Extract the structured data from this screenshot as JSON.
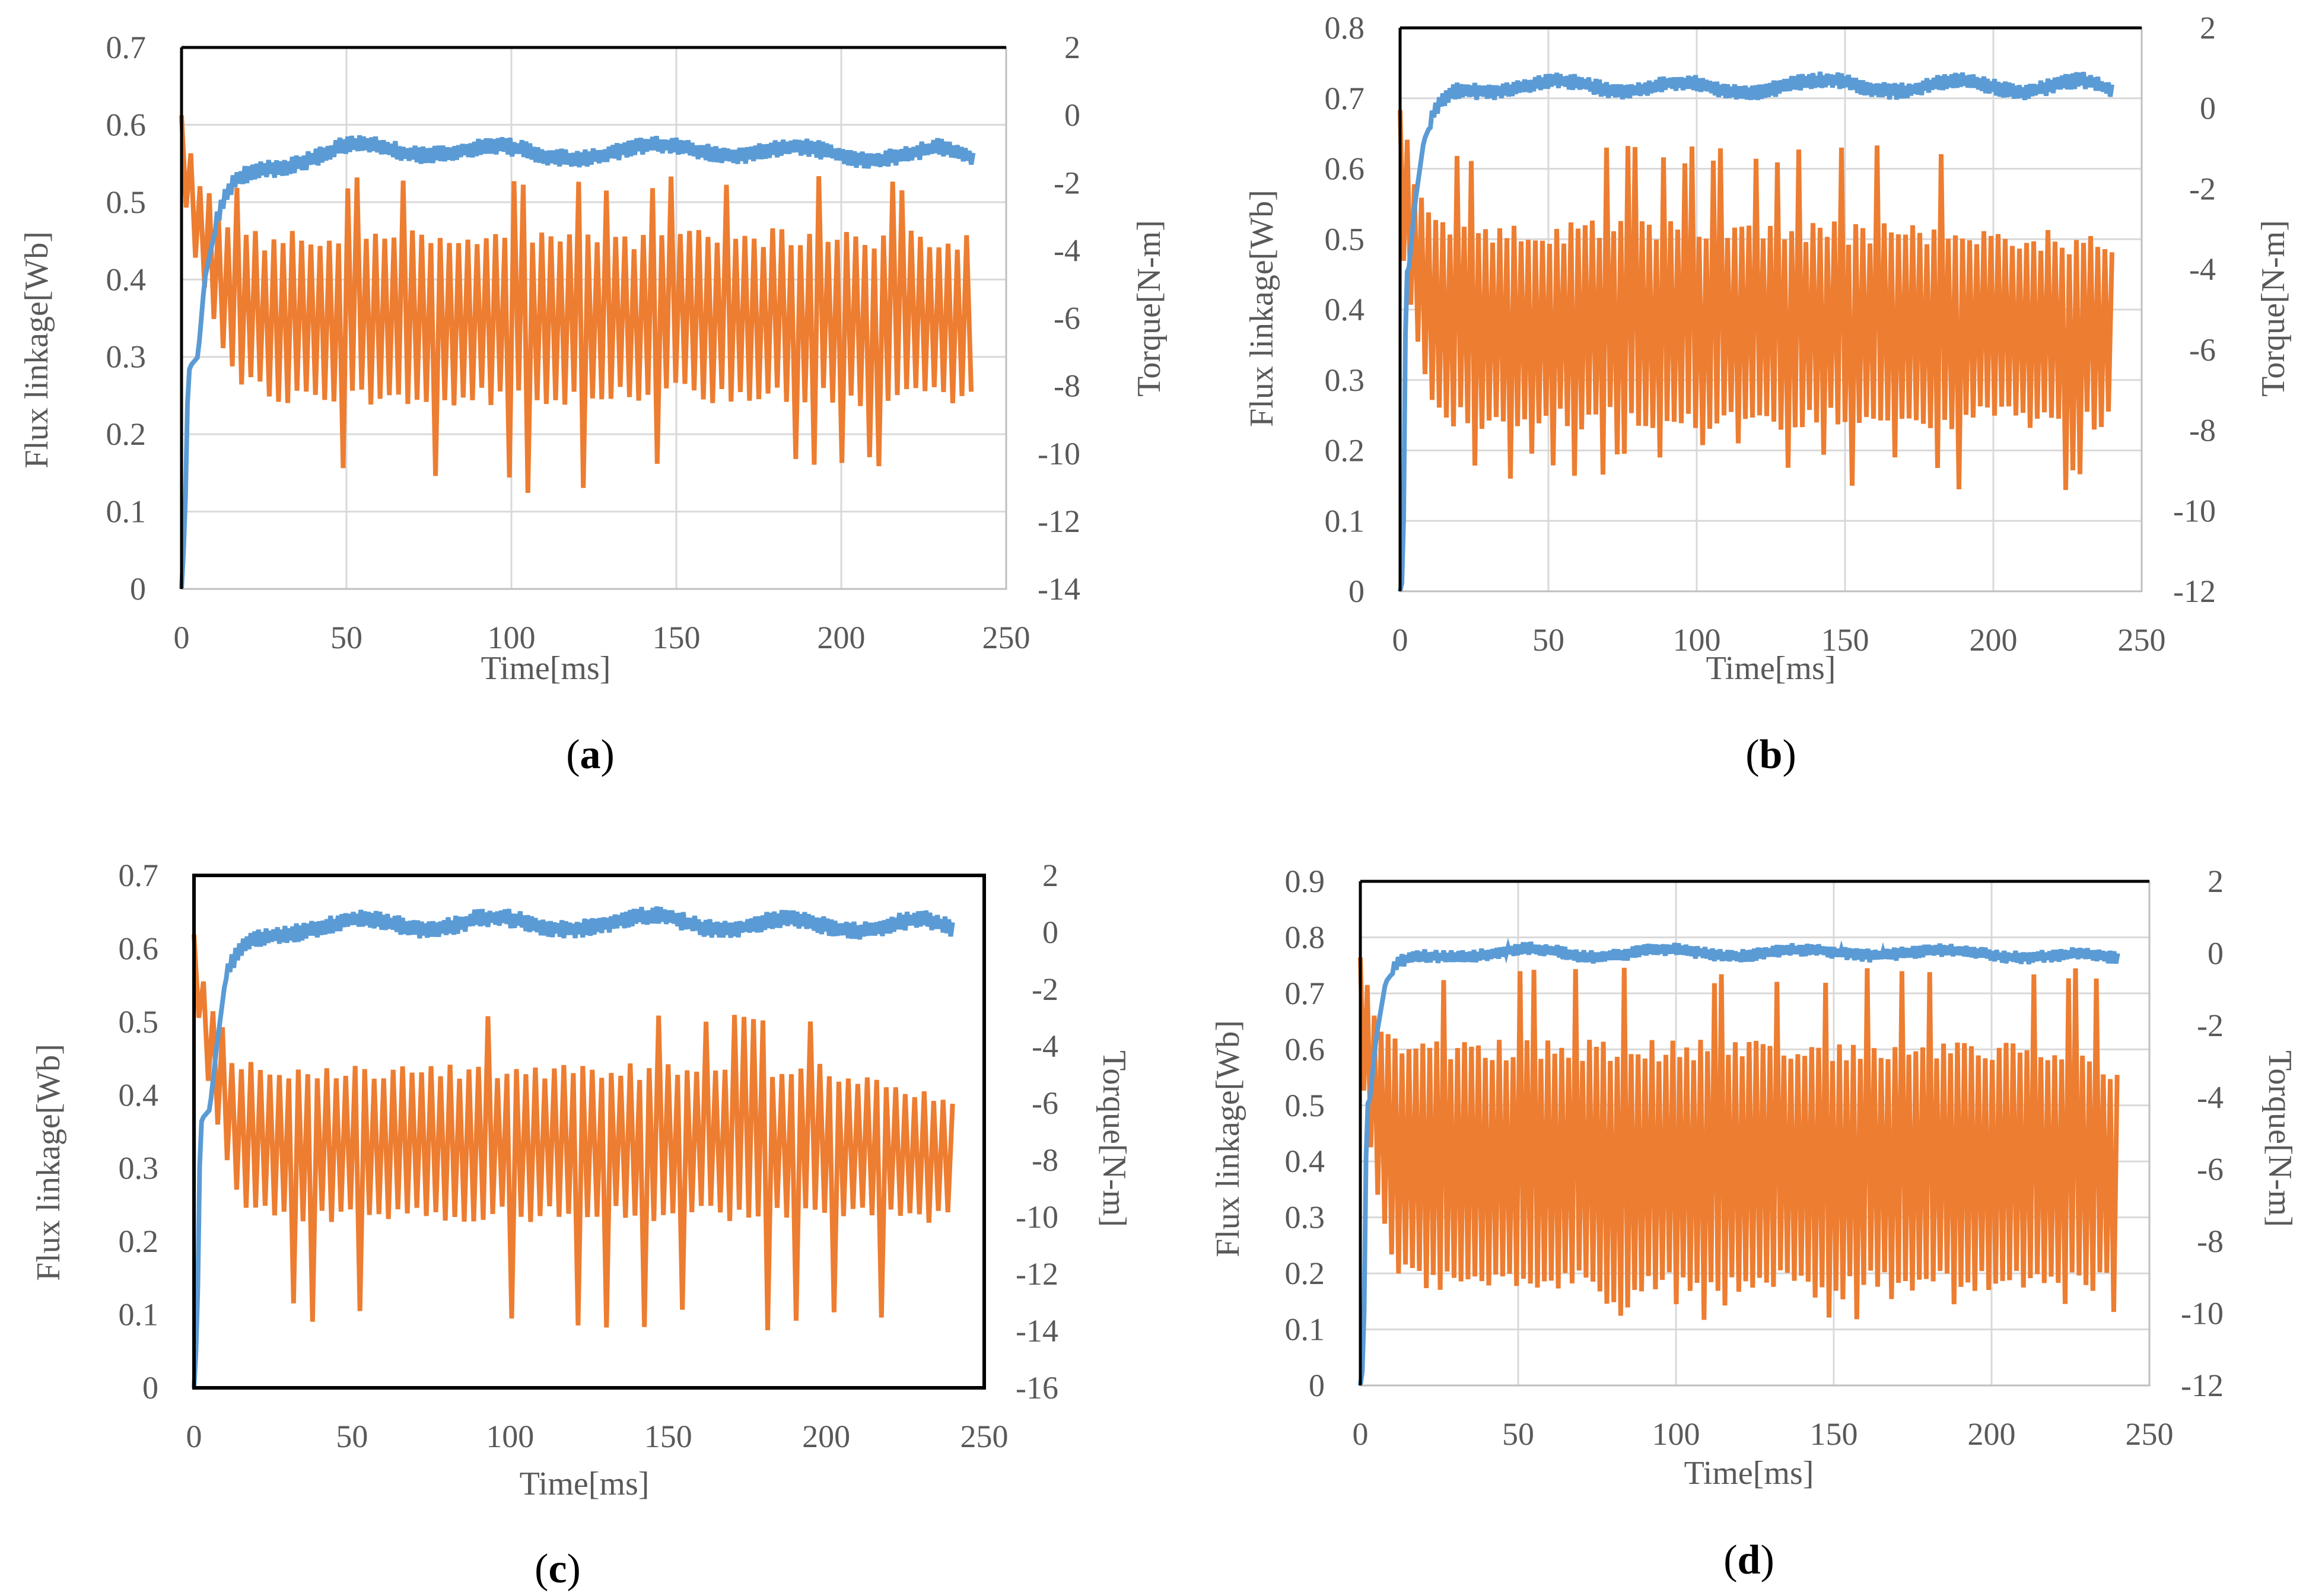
{
  "colors": {
    "flux": "#5b9bd5",
    "torque": "#ed7d31",
    "frame": "#000000",
    "grid": "#d9d9d9",
    "axis_text": "#595959"
  },
  "chart_data": [
    {
      "type": "line",
      "caption": "a",
      "xlabel": "Time[ms]",
      "ylabel": "Flux linkage[Wb]",
      "y2label": "Torque[N-m]",
      "xlim": [
        0,
        250
      ],
      "xticks": [
        0,
        50,
        100,
        150,
        200,
        250
      ],
      "ylim": [
        0,
        0.7
      ],
      "yticks": [
        0,
        0.1,
        0.2,
        0.3,
        0.4,
        0.5,
        0.6,
        0.7
      ],
      "y2lim": [
        -14,
        2
      ],
      "y2ticks": [
        -14,
        -12,
        -10,
        -8,
        -6,
        -4,
        -2,
        0,
        2
      ],
      "grid": true,
      "series": [
        {
          "key": "flux",
          "axis": "left",
          "x": [
            0,
            1,
            2,
            3,
            5,
            7,
            10,
            14,
            18,
            25,
            35,
            50,
            70,
            90,
            110,
            130,
            150,
            170,
            190,
            210,
            230,
            240
          ],
          "y": [
            0,
            0.08,
            0.28,
            0.29,
            0.3,
            0.4,
            0.46,
            0.51,
            0.53,
            0.545,
            0.555,
            0.57,
            0.565,
            0.57,
            0.56,
            0.565,
            0.57,
            0.565,
            0.565,
            0.56,
            0.565,
            0.555
          ],
          "ripple": 0.012,
          "period": 1.2
        },
        {
          "key": "torque",
          "axis": "right",
          "x": [
            0,
            2,
            5,
            8,
            12,
            18,
            25,
            50,
            100,
            150,
            200,
            240
          ],
          "upper": [
            0,
            -0.5,
            -1.5,
            -2.2,
            -3.0,
            -3.2,
            -3.4,
            -3.4,
            -3.3,
            -3.4,
            -3.3,
            -3.5
          ],
          "lower": [
            -2,
            -3.5,
            -5.0,
            -6.0,
            -7.2,
            -8.2,
            -8.5,
            -8.6,
            -8.6,
            -8.5,
            -8.6,
            -8.6
          ],
          "spike_high": -1.8,
          "spike_low": -11.2,
          "period": 2.8
        }
      ]
    },
    {
      "type": "line",
      "caption": "b",
      "xlabel": "Time[ms]",
      "ylabel": "Flux linkage[Wb]",
      "y2label": "Torque[N-m]",
      "xlim": [
        0,
        250
      ],
      "xticks": [
        0,
        50,
        100,
        150,
        200,
        250
      ],
      "ylim": [
        0,
        0.8
      ],
      "yticks": [
        0,
        0.1,
        0.2,
        0.3,
        0.4,
        0.5,
        0.6,
        0.7,
        0.8
      ],
      "y2lim": [
        -12,
        2
      ],
      "y2ticks": [
        -12,
        -10,
        -8,
        -6,
        -4,
        -2,
        0,
        2
      ],
      "grid": true,
      "series": [
        {
          "key": "flux",
          "axis": "left",
          "x": [
            0,
            1,
            2,
            3,
            5,
            8,
            12,
            16,
            20,
            30,
            50,
            70,
            90,
            110,
            130,
            150,
            170,
            190,
            210,
            230,
            240
          ],
          "y": [
            0,
            0.02,
            0.45,
            0.46,
            0.55,
            0.64,
            0.68,
            0.7,
            0.71,
            0.715,
            0.72,
            0.715,
            0.72,
            0.71,
            0.72,
            0.72,
            0.715,
            0.72,
            0.715,
            0.72,
            0.71
          ],
          "ripple": 0.012,
          "period": 1.2
        },
        {
          "key": "torque",
          "axis": "right",
          "x": [
            0,
            2,
            5,
            8,
            12,
            18,
            25,
            50,
            100,
            150,
            200,
            240
          ],
          "upper": [
            0,
            -0.5,
            -1.5,
            -2.0,
            -2.5,
            -2.8,
            -2.8,
            -2.8,
            -2.7,
            -2.8,
            -2.8,
            -3.2
          ],
          "lower": [
            -3,
            -4.5,
            -6.0,
            -7.0,
            -7.8,
            -8.0,
            -8.0,
            -8.0,
            -8.0,
            -8.0,
            -8.0,
            -8.0
          ],
          "spike_high": -0.9,
          "spike_low": -9.5,
          "period": 2.4
        }
      ]
    },
    {
      "type": "line",
      "caption": "c",
      "xlabel": "Time[ms]",
      "ylabel": "Flux linkage[Wb]",
      "y2label": "Torque[N-m]",
      "xlim": [
        0,
        250
      ],
      "xticks": [
        0,
        50,
        100,
        150,
        200,
        250
      ],
      "ylim": [
        0,
        0.7
      ],
      "yticks": [
        0,
        0.1,
        0.2,
        0.3,
        0.4,
        0.5,
        0.6,
        0.7
      ],
      "y2lim": [
        -16,
        2
      ],
      "y2ticks": [
        -16,
        -14,
        -12,
        -10,
        -8,
        -6,
        -4,
        -2,
        0,
        2
      ],
      "grid": false,
      "series": [
        {
          "key": "flux",
          "axis": "left",
          "x": [
            0,
            1,
            2,
            3,
            5,
            7,
            10,
            14,
            18,
            25,
            35,
            50,
            70,
            90,
            110,
            130,
            150,
            170,
            190,
            210,
            230,
            240
          ],
          "y": [
            0,
            0.08,
            0.36,
            0.37,
            0.38,
            0.46,
            0.56,
            0.59,
            0.61,
            0.62,
            0.63,
            0.635,
            0.63,
            0.64,
            0.63,
            0.635,
            0.64,
            0.63,
            0.635,
            0.63,
            0.635,
            0.625
          ],
          "ripple": 0.013,
          "period": 1.2
        },
        {
          "key": "torque",
          "axis": "right",
          "x": [
            0,
            2,
            5,
            8,
            12,
            18,
            25,
            50,
            100,
            150,
            200,
            240
          ],
          "upper": [
            0,
            -0.8,
            -2.0,
            -3.0,
            -4.0,
            -4.5,
            -4.6,
            -4.6,
            -4.6,
            -4.6,
            -4.6,
            -5.5
          ],
          "lower": [
            -2,
            -4.0,
            -6.0,
            -7.5,
            -9.0,
            -10.0,
            -10.2,
            -10.2,
            -10.2,
            -10.2,
            -10.2,
            -10.2
          ],
          "spike_high": -2.9,
          "spike_low": -14.0,
          "period": 3.0
        }
      ]
    },
    {
      "type": "line",
      "caption": "d",
      "xlabel": "Time[ms]",
      "ylabel": "Flux linkage[Wb]",
      "y2label": "Torque[N-m]",
      "xlim": [
        0,
        250
      ],
      "xticks": [
        0,
        50,
        100,
        150,
        200,
        250
      ],
      "ylim": [
        0,
        0.9
      ],
      "yticks": [
        0,
        0.1,
        0.2,
        0.3,
        0.4,
        0.5,
        0.6,
        0.7,
        0.8,
        0.9
      ],
      "y2lim": [
        -12,
        2
      ],
      "y2ticks": [
        -12,
        -10,
        -8,
        -6,
        -4,
        -2,
        0,
        2
      ],
      "grid": true,
      "series": [
        {
          "key": "flux",
          "axis": "left",
          "x": [
            0,
            1,
            2,
            3,
            5,
            8,
            12,
            16,
            20,
            30,
            50,
            70,
            90,
            110,
            130,
            150,
            170,
            190,
            210,
            230,
            240
          ],
          "y": [
            0,
            0.04,
            0.5,
            0.51,
            0.62,
            0.72,
            0.75,
            0.76,
            0.765,
            0.77,
            0.775,
            0.77,
            0.775,
            0.77,
            0.775,
            0.77,
            0.775,
            0.77,
            0.77,
            0.765,
            0.76
          ],
          "ripple": 0.012,
          "period": 1.2
        },
        {
          "key": "torque",
          "axis": "right",
          "x": [
            0,
            2,
            5,
            8,
            12,
            18,
            25,
            50,
            100,
            150,
            200,
            240
          ],
          "upper": [
            0,
            -0.5,
            -1.5,
            -2.0,
            -2.2,
            -2.4,
            -2.4,
            -2.4,
            -2.4,
            -2.4,
            -2.4,
            -3.0
          ],
          "lower": [
            -3,
            -5.0,
            -7.0,
            -8.0,
            -9.0,
            -9.3,
            -9.4,
            -9.4,
            -9.4,
            -9.4,
            -9.4,
            -9.4
          ],
          "spike_high": -0.4,
          "spike_low": -10.3,
          "period": 2.2
        }
      ]
    }
  ]
}
